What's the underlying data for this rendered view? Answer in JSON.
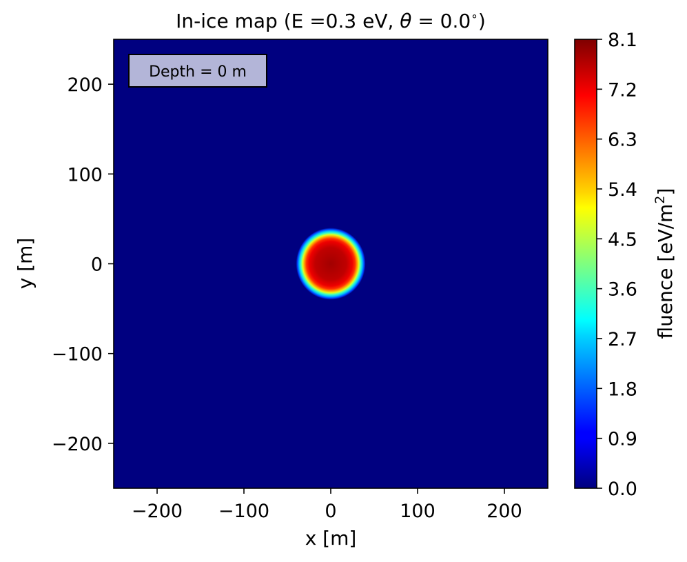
{
  "chart_data": {
    "type": "heatmap",
    "title_main": "In-ice map (E =0.3 eV, ",
    "title_theta_symbol": "θ",
    "title_theta_eq": " = 0.0",
    "title_degree": "∘",
    "title_close": ")",
    "xlabel": "x [m]",
    "ylabel": "y [m]",
    "xlim": [
      -250,
      250
    ],
    "ylim": [
      -250,
      250
    ],
    "xticks": [
      -200,
      -100,
      0,
      100,
      200
    ],
    "yticks": [
      -200,
      -100,
      0,
      100,
      200
    ],
    "xtick_labels": [
      "−200",
      "−100",
      "0",
      "100",
      "200"
    ],
    "ytick_labels": [
      "−200",
      "−100",
      "0",
      "100",
      "200"
    ],
    "annotation": "Depth = 0 m",
    "annotation_position": "top-left",
    "colormap": "jet",
    "colorbar": {
      "label_main": "fluence [eV/m",
      "label_sup": "2",
      "label_close": "]",
      "range": [
        0.0,
        8.1
      ],
      "ticks": [
        0.0,
        0.9,
        1.8,
        2.7,
        3.6,
        4.5,
        5.4,
        6.3,
        7.2,
        8.1
      ],
      "tick_labels": [
        "0.0",
        "0.9",
        "1.8",
        "2.7",
        "3.6",
        "4.5",
        "5.4",
        "6.3",
        "7.2",
        "8.1"
      ]
    },
    "footprint": {
      "center": [
        0,
        0
      ],
      "plateau_radius": 25,
      "edge_radius": 40,
      "peak_value": 8.1,
      "plateau_value": 7.7,
      "background_value": 0.0
    }
  }
}
